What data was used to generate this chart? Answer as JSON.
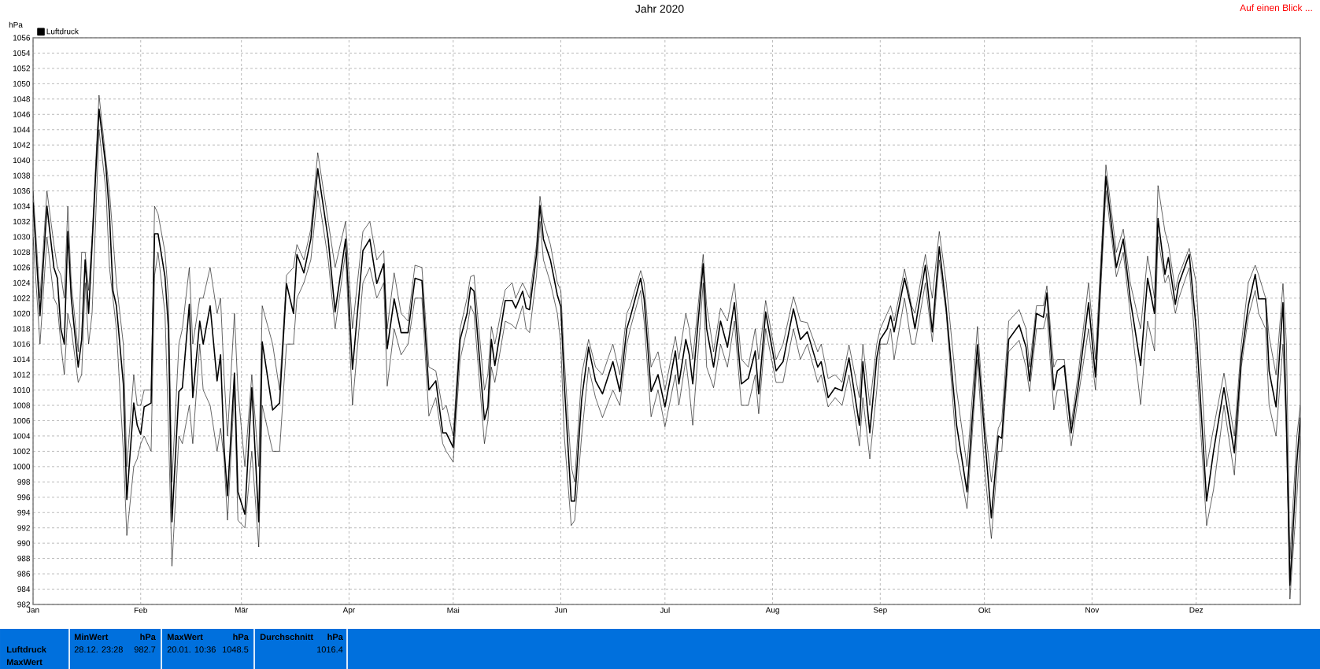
{
  "chart_data": {
    "type": "line",
    "title": "Jahr 2020",
    "ylabel": "hPa",
    "annotations": [
      "Auf einen Blick ...",
      "Luftdruck",
      "MaxWert",
      "MinWert",
      "hPa",
      "28.12.  23:28",
      "982.7",
      "MaxWert",
      "hPa",
      "20.01.  10:36",
      "1048.5",
      "Durchschnitt",
      "hPa",
      "1016.4"
    ],
    "x": [
      "2020-01-01",
      "2020-01-03",
      "2020-01-05",
      "2020-01-07",
      "2020-01-08",
      "2020-01-09",
      "2020-01-10",
      "2020-01-11",
      "2020-01-12",
      "2020-01-14",
      "2020-01-15",
      "2020-01-16",
      "2020-01-17",
      "2020-01-18",
      "2020-01-20",
      "2020-01-22",
      "2020-01-23",
      "2020-01-24",
      "2020-01-25",
      "2020-01-27",
      "2020-01-28",
      "2020-01-30",
      "2020-01-31",
      "2020-02-01",
      "2020-02-02",
      "2020-02-04",
      "2020-02-05",
      "2020-02-06",
      "2020-02-08",
      "2020-02-09",
      "2020-02-10",
      "2020-02-12",
      "2020-02-13",
      "2020-02-15",
      "2020-02-16",
      "2020-02-18",
      "2020-02-19",
      "2020-02-21",
      "2020-02-23",
      "2020-02-24",
      "2020-02-25",
      "2020-02-26",
      "2020-02-28",
      "2020-02-29",
      "2020-03-02",
      "2020-03-04",
      "2020-03-06",
      "2020-03-07",
      "2020-03-10",
      "2020-03-12",
      "2020-03-14",
      "2020-03-16",
      "2020-03-17",
      "2020-03-19",
      "2020-03-21",
      "2020-03-23",
      "2020-03-26",
      "2020-03-28",
      "2020-03-31",
      "2020-04-02",
      "2020-04-05",
      "2020-04-07",
      "2020-04-09",
      "2020-04-11",
      "2020-04-12",
      "2020-04-14",
      "2020-04-16",
      "2020-04-18",
      "2020-04-20",
      "2020-04-22",
      "2020-04-24",
      "2020-04-26",
      "2020-04-28",
      "2020-04-29",
      "2020-05-01",
      "2020-05-03",
      "2020-05-05",
      "2020-05-06",
      "2020-05-07",
      "2020-05-10",
      "2020-05-11",
      "2020-05-12",
      "2020-05-13",
      "2020-05-16",
      "2020-05-18",
      "2020-05-19",
      "2020-05-21",
      "2020-05-22",
      "2020-05-23",
      "2020-05-25",
      "2020-05-26",
      "2020-05-27",
      "2020-05-29",
      "2020-05-31",
      "2020-06-01",
      "2020-06-02",
      "2020-06-04",
      "2020-06-05",
      "2020-06-07",
      "2020-06-09",
      "2020-06-11",
      "2020-06-13",
      "2020-06-16",
      "2020-06-18",
      "2020-06-20",
      "2020-06-21",
      "2020-06-24",
      "2020-06-25",
      "2020-06-27",
      "2020-06-29",
      "2020-07-01",
      "2020-07-04",
      "2020-07-05",
      "2020-07-07",
      "2020-07-08",
      "2020-07-09",
      "2020-07-12",
      "2020-07-13",
      "2020-07-15",
      "2020-07-17",
      "2020-07-19",
      "2020-07-21",
      "2020-07-23",
      "2020-07-25",
      "2020-07-27",
      "2020-07-28",
      "2020-07-30",
      "2020-08-02",
      "2020-08-04",
      "2020-08-07",
      "2020-08-09",
      "2020-08-11",
      "2020-08-14",
      "2020-08-15",
      "2020-08-17",
      "2020-08-19",
      "2020-08-21",
      "2020-08-23",
      "2020-08-26",
      "2020-08-27",
      "2020-08-29",
      "2020-08-31",
      "2020-09-01",
      "2020-09-03",
      "2020-09-04",
      "2020-09-05",
      "2020-09-08",
      "2020-09-10",
      "2020-09-11",
      "2020-09-14",
      "2020-09-16",
      "2020-09-18",
      "2020-09-20",
      "2020-09-23",
      "2020-09-26",
      "2020-09-29",
      "2020-10-01",
      "2020-10-03",
      "2020-10-05",
      "2020-10-06",
      "2020-10-08",
      "2020-10-11",
      "2020-10-13",
      "2020-10-14",
      "2020-10-16",
      "2020-10-18",
      "2020-10-19",
      "2020-10-21",
      "2020-10-22",
      "2020-10-24",
      "2020-10-26",
      "2020-10-28",
      "2020-10-31",
      "2020-11-02",
      "2020-11-05",
      "2020-11-08",
      "2020-11-10",
      "2020-11-12",
      "2020-11-15",
      "2020-11-17",
      "2020-11-19",
      "2020-11-20",
      "2020-11-22",
      "2020-11-23",
      "2020-11-25",
      "2020-11-26",
      "2020-11-29",
      "2020-12-01",
      "2020-12-04",
      "2020-12-06",
      "2020-12-09",
      "2020-12-12",
      "2020-12-14",
      "2020-12-16",
      "2020-12-18",
      "2020-12-19",
      "2020-12-21",
      "2020-12-22",
      "2020-12-24",
      "2020-12-26",
      "2020-12-27",
      "2020-12-28",
      "2020-12-30",
      "2020-12-31"
    ],
    "series": [
      {
        "name": "Luftdruck",
        "color": "#000000",
        "values": [
          1034.5,
          1019.7,
          1034,
          1026,
          1024.6,
          1018,
          1016,
          1030.7,
          1022,
          1013,
          1016.6,
          1027,
          1020,
          1029,
          1046.7,
          1039,
          1033,
          1023,
          1021,
          1010.8,
          995.7,
          1008.3,
          1005.4,
          1004.2,
          1007.8,
          1008.3,
          1030.4,
          1030.4,
          1024.8,
          1018,
          992.8,
          1009.8,
          1010.3,
          1021.2,
          1009,
          1019,
          1016,
          1021,
          1011.2,
          1014.6,
          1002.5,
          996.2,
          1012.2,
          996.7,
          993.8,
          1010.3,
          992.8,
          1016.3,
          1007.4,
          1008.3,
          1023.9,
          1020,
          1027.7,
          1025.3,
          1029.7,
          1038.9,
          1029.7,
          1020.2,
          1029.7,
          1012.7,
          1028.2,
          1029.7,
          1023.9,
          1026.5,
          1015.4,
          1021.9,
          1017.5,
          1017.5,
          1024.6,
          1024.3,
          1010,
          1011.2,
          1004.4,
          1004.4,
          1002.5,
          1016.6,
          1020,
          1023.4,
          1022.9,
          1006.1,
          1007.8,
          1016.6,
          1013.2,
          1021.7,
          1021.7,
          1020.7,
          1022.9,
          1020.7,
          1020.5,
          1027.7,
          1034.1,
          1029.7,
          1027,
          1022.4,
          1020.9,
          1010.8,
          995.5,
          995.5,
          1008.8,
          1015.6,
          1011.2,
          1009.5,
          1013.7,
          1009.8,
          1018,
          1019.5,
          1024.6,
          1021.9,
          1009.8,
          1012,
          1007.8,
          1015.1,
          1010.8,
          1016.6,
          1014.6,
          1010.8,
          1026.5,
          1018,
          1013,
          1019,
          1015.6,
          1021.4,
          1010.8,
          1011.5,
          1015.1,
          1009.5,
          1020.2,
          1012.5,
          1013.7,
          1020.6,
          1016.6,
          1017.6,
          1013,
          1013.7,
          1009,
          1010.3,
          1009.9,
          1014.2,
          1005.4,
          1013.7,
          1004.4,
          1014.2,
          1016.6,
          1018,
          1019.7,
          1017.6,
          1024.6,
          1020.6,
          1018,
          1026.3,
          1017.6,
          1028.7,
          1020.7,
          1005.4,
          996.7,
          1015.9,
          1004.4,
          993.3,
          1004,
          1003.7,
          1016.6,
          1018.5,
          1015.6,
          1011.2,
          1020,
          1019.5,
          1022.7,
          1010,
          1012.5,
          1013.2,
          1004.4,
          1010.5,
          1021.4,
          1011.7,
          1037.9,
          1026,
          1029.7,
          1021.9,
          1013.2,
          1024.6,
          1020,
          1032.4,
          1025.1,
          1027.3,
          1021.2,
          1023.9,
          1027.7,
          1018,
          995.5,
          1002,
          1010.3,
          1001.8,
          1014.2,
          1021,
          1025.1,
          1021.9,
          1021.9,
          1012.5,
          1007.8,
          1021.4,
          1005.9,
          984.5,
          1000.6,
          1006.4
        ]
      },
      {
        "color": "#000000",
        "values": [
          1036,
          1022,
          1036,
          1029,
          1026,
          1025,
          1022,
          1034,
          1024,
          1015,
          1028,
          1028,
          1023,
          1030,
          1048.5,
          1040,
          1036,
          1030,
          1024,
          1016,
          1000,
          1012,
          1008,
          1008,
          1010,
          1010,
          1034,
          1033,
          1028,
          1022,
          998,
          1016,
          1018,
          1026,
          1016,
          1022,
          1022,
          1026,
          1020,
          1022,
          1012,
          1004,
          1020,
          1010,
          1000,
          1012,
          1000,
          1021,
          1016,
          1010,
          1025,
          1026,
          1029,
          1027,
          1031,
          1041,
          1032,
          1026,
          1032,
          1018,
          1030.7,
          1032,
          1027,
          1028.2,
          1018,
          1025.3,
          1020,
          1019,
          1026.3,
          1026,
          1013,
          1012.5,
          1007.4,
          1008,
          1004,
          1018,
          1022,
          1024.8,
          1025,
          1010,
          1012,
          1018.3,
          1016,
          1023.1,
          1024,
          1022,
          1024,
          1023,
          1022,
          1029,
          1035.3,
          1032,
          1029,
          1024,
          1023,
          1014,
          1000,
          998,
          1012,
          1016.6,
          1013,
          1012,
          1016,
          1012,
          1020,
          1021,
          1025.6,
          1024,
          1013,
          1015,
          1010,
          1017,
          1014,
          1020,
          1018,
          1014,
          1027.7,
          1021,
          1015,
          1020.7,
          1019,
          1023.9,
          1014,
          1013,
          1018,
          1014,
          1021.7,
          1014,
          1016,
          1022.2,
          1019,
          1018.8,
          1015,
          1016,
          1011.5,
          1012,
          1011,
          1015.9,
          1009,
          1016,
          1008,
          1016,
          1018,
          1020,
          1021,
          1019,
          1025.8,
          1021,
          1020,
          1027.7,
          1022,
          1030.7,
          1024,
          1010,
          1000,
          1018.3,
          1006,
          998,
          1005,
          1006,
          1019,
          1020.5,
          1018,
          1013,
          1021,
          1021,
          1023.6,
          1013,
          1014,
          1014,
          1005.5,
          1012,
          1024,
          1014,
          1039.4,
          1028,
          1031,
          1024,
          1018,
          1027.5,
          1022,
          1036.7,
          1030.7,
          1029,
          1023,
          1025,
          1028.5,
          1024,
          1000,
          1005,
          1012.2,
          1004,
          1016,
          1024,
          1026.3,
          1025,
          1022,
          1017,
          1012,
          1023.9,
          1016,
          988,
          1004,
          1008
        ]
      },
      {
        "color": "#000000",
        "values": [
          1030,
          1016,
          1030,
          1022,
          1021,
          1016,
          1012,
          1020,
          1018,
          1011,
          1012,
          1024,
          1016,
          1020,
          1044,
          1036,
          1026,
          1022,
          1018,
          1002,
          991,
          1000,
          1001,
          1003,
          1004,
          1002,
          1025,
          1028,
          1020,
          1005,
          987,
          1004,
          1003,
          1008,
          1003,
          1016,
          1010,
          1008,
          1002,
          1005,
          1001,
          993,
          1010,
          993,
          992,
          1002,
          989.5,
          1008,
          1002,
          1002,
          1016,
          1016,
          1022,
          1024,
          1027,
          1036,
          1027,
          1018,
          1028,
          1008,
          1024,
          1026,
          1022,
          1024,
          1010.5,
          1018,
          1014.6,
          1016,
          1022,
          1022,
          1006.6,
          1009,
          1003,
          1002,
          1000.6,
          1014,
          1018,
          1021,
          1020,
          1003,
          1006,
          1013,
          1011,
          1019,
          1018.5,
          1018,
          1021,
          1018,
          1017.5,
          1025,
          1032,
          1027,
          1024,
          1020,
          1016,
          1004,
          992.3,
          993,
          1004,
          1013,
          1009,
          1006.4,
          1010,
          1008,
          1016,
          1018,
          1023,
          1019,
          1006.5,
          1010,
          1005.2,
          1012,
          1008,
          1014,
          1010,
          1005.4,
          1024,
          1013,
          1010.3,
          1016,
          1013,
          1019,
          1008,
          1008,
          1012,
          1006.9,
          1018,
          1011,
          1011,
          1018,
          1014,
          1016,
          1011,
          1012,
          1007.8,
          1009,
          1008,
          1012,
          1002.7,
          1009,
          1001,
          1010,
          1016,
          1016,
          1018,
          1014,
          1022,
          1016,
          1016,
          1024,
          1016.3,
          1027,
          1020,
          1002,
          994.5,
          1014,
          1000,
          990.6,
          1002,
          1002,
          1015,
          1016.5,
          1013,
          1009.8,
          1018,
          1018,
          1020,
          1007.4,
          1010,
          1010,
          1002.7,
          1009,
          1018,
          1010,
          1036,
          1024.8,
          1028,
          1020,
          1008.1,
          1019,
          1015.1,
          1030,
          1024,
          1025,
          1020,
          1022,
          1026,
          1014.2,
          992.3,
          997,
          1008,
          998.9,
          1013,
          1019.5,
          1023,
          1020,
          1018,
          1008,
          1004,
          1016,
          1004,
          982.7,
          996,
          1004
        ]
      }
    ],
    "xlim": [
      "2020-01-01",
      "2020-12-31"
    ],
    "xticks": [
      {
        "value": "2020-01-01",
        "label": "Jan"
      },
      {
        "value": "2020-02-01",
        "label": "Feb"
      },
      {
        "value": "2020-03-01",
        "label": "Mär"
      },
      {
        "value": "2020-04-01",
        "label": "Apr"
      },
      {
        "value": "2020-05-01",
        "label": "Mai"
      },
      {
        "value": "2020-06-01",
        "label": "Jun"
      },
      {
        "value": "2020-07-01",
        "label": "Jul"
      },
      {
        "value": "2020-08-01",
        "label": "Aug"
      },
      {
        "value": "2020-09-01",
        "label": "Sep"
      },
      {
        "value": "2020-10-01",
        "label": "Okt"
      },
      {
        "value": "2020-11-01",
        "label": "Nov"
      },
      {
        "value": "2020-12-01",
        "label": "Dez"
      }
    ],
    "ylim": [
      982,
      1056
    ],
    "yticks": [
      982,
      984,
      986,
      988,
      990,
      992,
      994,
      996,
      998,
      1000,
      1002,
      1004,
      1006,
      1008,
      1010,
      1012,
      1014,
      1016,
      1018,
      1020,
      1022,
      1024,
      1026,
      1028,
      1030,
      1032,
      1034,
      1036,
      1038,
      1040,
      1042,
      1044,
      1046,
      1048,
      1050,
      1052,
      1054,
      1056
    ],
    "grid": true,
    "legend": "top left"
  }
}
